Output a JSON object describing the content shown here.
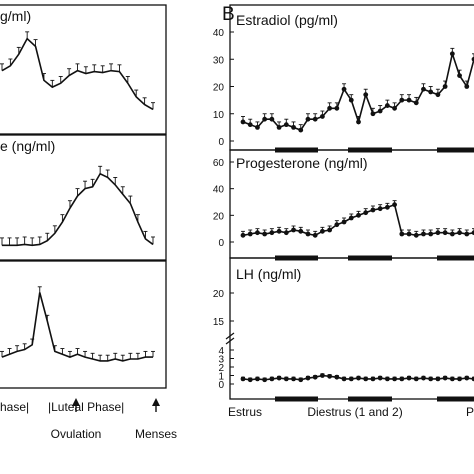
{
  "panel_b_letter": "B",
  "chart_data": [
    {
      "type": "line",
      "panel": "A (cropped, left)",
      "subplots": [
        {
          "title_fragment": "g/ml)",
          "series": [
            {
              "values": [
                0.55,
                0.6,
                0.72,
                0.88,
                0.8,
                0.45,
                0.38,
                0.42,
                0.5,
                0.55,
                0.52,
                0.54,
                0.53,
                0.55,
                0.54,
                0.42,
                0.28,
                0.2,
                0.15
              ],
              "error": 0.07
            }
          ]
        },
        {
          "title_fragment": "e (ng/ml)",
          "series": [
            {
              "values": [
                0.05,
                0.05,
                0.05,
                0.06,
                0.05,
                0.06,
                0.1,
                0.18,
                0.3,
                0.45,
                0.58,
                0.66,
                0.68,
                0.82,
                0.78,
                0.7,
                0.6,
                0.5,
                0.3,
                0.12,
                0.06
              ],
              "error": 0.08
            }
          ]
        },
        {
          "title_fragment": "",
          "series": [
            {
              "values": [
                0.22,
                0.25,
                0.28,
                0.3,
                0.35,
                0.9,
                0.6,
                0.28,
                0.25,
                0.22,
                0.25,
                0.22,
                0.2,
                0.18,
                0.18,
                0.2,
                0.18,
                0.2,
                0.2,
                0.22,
                0.22
              ],
              "error": 0.06
            }
          ]
        }
      ],
      "x_labels": [
        "hase|",
        "|Luteal Phase|"
      ],
      "arrows": [
        "Ovulation",
        "Menses"
      ]
    },
    {
      "type": "line",
      "panel": "B",
      "x_labels": [
        "Estrus",
        "Diestrus (1 and 2)",
        "P"
      ],
      "subplots": [
        {
          "title": "Estradiol  (pg/ml)",
          "ylim": [
            0,
            40
          ],
          "yticks": [
            "0",
            "10",
            "20",
            "30",
            "40"
          ],
          "series": [
            {
              "values": [
                7,
                6,
                5,
                8,
                8,
                5,
                6,
                5,
                4,
                8,
                8,
                9,
                12,
                12,
                19,
                15,
                7,
                17,
                10,
                11,
                13,
                12,
                15,
                15,
                14,
                19,
                18,
                17,
                20,
                32,
                24,
                20,
                30
              ],
              "error": 2
            }
          ]
        },
        {
          "title": "Progesterone  (ng/ml)",
          "ylim": [
            0,
            60
          ],
          "yticks": [
            "0",
            "20",
            "40",
            "60"
          ],
          "series": [
            {
              "values": [
                5,
                6,
                7,
                6,
                7,
                8,
                7,
                9,
                8,
                6,
                5,
                8,
                9,
                13,
                15,
                18,
                20,
                22,
                24,
                25,
                26,
                28,
                6,
                6,
                5,
                6,
                6,
                7,
                7,
                6,
                7,
                6,
                7
              ],
              "error": 3
            }
          ]
        },
        {
          "title": "LH  (ng/ml)",
          "ylim": [
            0,
            20
          ],
          "yticks": [
            "0",
            "1",
            "2",
            "3",
            "4",
            "15",
            "20"
          ],
          "series": [
            {
              "values": [
                0.6,
                0.5,
                0.6,
                0.5,
                0.6,
                0.7,
                0.6,
                0.6,
                0.5,
                0.7,
                0.8,
                1.0,
                0.9,
                0.8,
                0.6,
                0.6,
                0.7,
                0.6,
                0.6,
                0.7,
                0.6,
                0.6,
                0.6,
                0.7,
                0.6,
                0.7,
                0.6,
                0.6,
                0.7,
                0.6,
                0.6,
                0.7,
                0.6
              ],
              "error": 0.2
            }
          ]
        }
      ]
    }
  ]
}
